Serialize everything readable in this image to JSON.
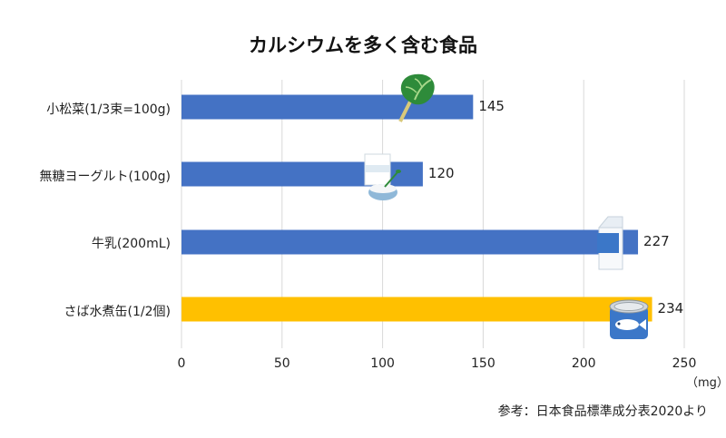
{
  "chart_data": {
    "type": "bar",
    "orientation": "horizontal",
    "title": "カルシウムを多く含む食品",
    "categories": [
      "小松菜(1/3束=100g)",
      "無糖ヨーグルト(100g)",
      "牛乳(200mL)",
      "さば水煮缶(1/2個)"
    ],
    "values": [
      145,
      120,
      227,
      234
    ],
    "value_labels": [
      "145",
      "120",
      "227",
      "234"
    ],
    "bar_colors": [
      "#4472c4",
      "#4472c4",
      "#4472c4",
      "#ffc000"
    ],
    "xlim": [
      0,
      250
    ],
    "x_ticks": [
      "0",
      "50",
      "100",
      "150",
      "200",
      "250"
    ],
    "unit_label": "（mg）",
    "grid": "vertical",
    "icons": [
      "komatsuna-leaf-icon",
      "yogurt-icon",
      "milk-carton-icon",
      "mackerel-can-icon"
    ]
  },
  "source_note": "参考：日本食品標準成分表2020より",
  "colors": {
    "bar_default": "#4472c4",
    "bar_highlight": "#ffc000",
    "grid": "#d9d9d9"
  }
}
